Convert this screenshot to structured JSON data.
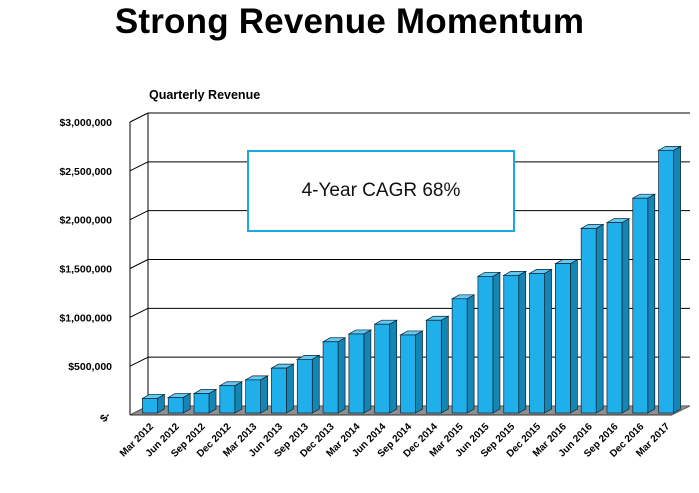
{
  "title": "Strong Revenue Momentum",
  "chart_data": {
    "type": "bar",
    "subtitle": "Quarterly Revenue",
    "annotation": "4-Year CAGR 68%",
    "categories": [
      "Mar 2012",
      "Jun 2012",
      "Sep 2012",
      "Dec 2012",
      "Mar 2013",
      "Jun 2013",
      "Sep 2013",
      "Dec 2013",
      "Mar 2014",
      "Jun 2014",
      "Sep 2014",
      "Dec 2014",
      "Mar 2015",
      "Jun 2015",
      "Sep 2015",
      "Dec 2015",
      "Mar 2016",
      "Jun 2016",
      "Sep 2016",
      "Dec 2016",
      "Mar 2017"
    ],
    "values": [
      180000,
      190000,
      230000,
      310000,
      370000,
      490000,
      580000,
      760000,
      840000,
      940000,
      830000,
      980000,
      1200000,
      1430000,
      1440000,
      1460000,
      1560000,
      1920000,
      1980000,
      2230000,
      2720000
    ],
    "y_tick_labels": [
      "$-",
      "$500,000",
      "$1,000,000",
      "$1,500,000",
      "$2,000,000",
      "$2,500,000",
      "$3,000,000"
    ],
    "ylim": [
      0,
      3000000
    ],
    "xlabel": "",
    "ylabel": "",
    "grid": true,
    "legend": "none",
    "colors": {
      "bar_front": "#1fb0ec",
      "bar_top": "#62c9f2",
      "bar_side": "#1585b3",
      "edge": "#0d2230",
      "annotation_border": "#19a9e0",
      "floor": "#8f8f8f"
    }
  }
}
